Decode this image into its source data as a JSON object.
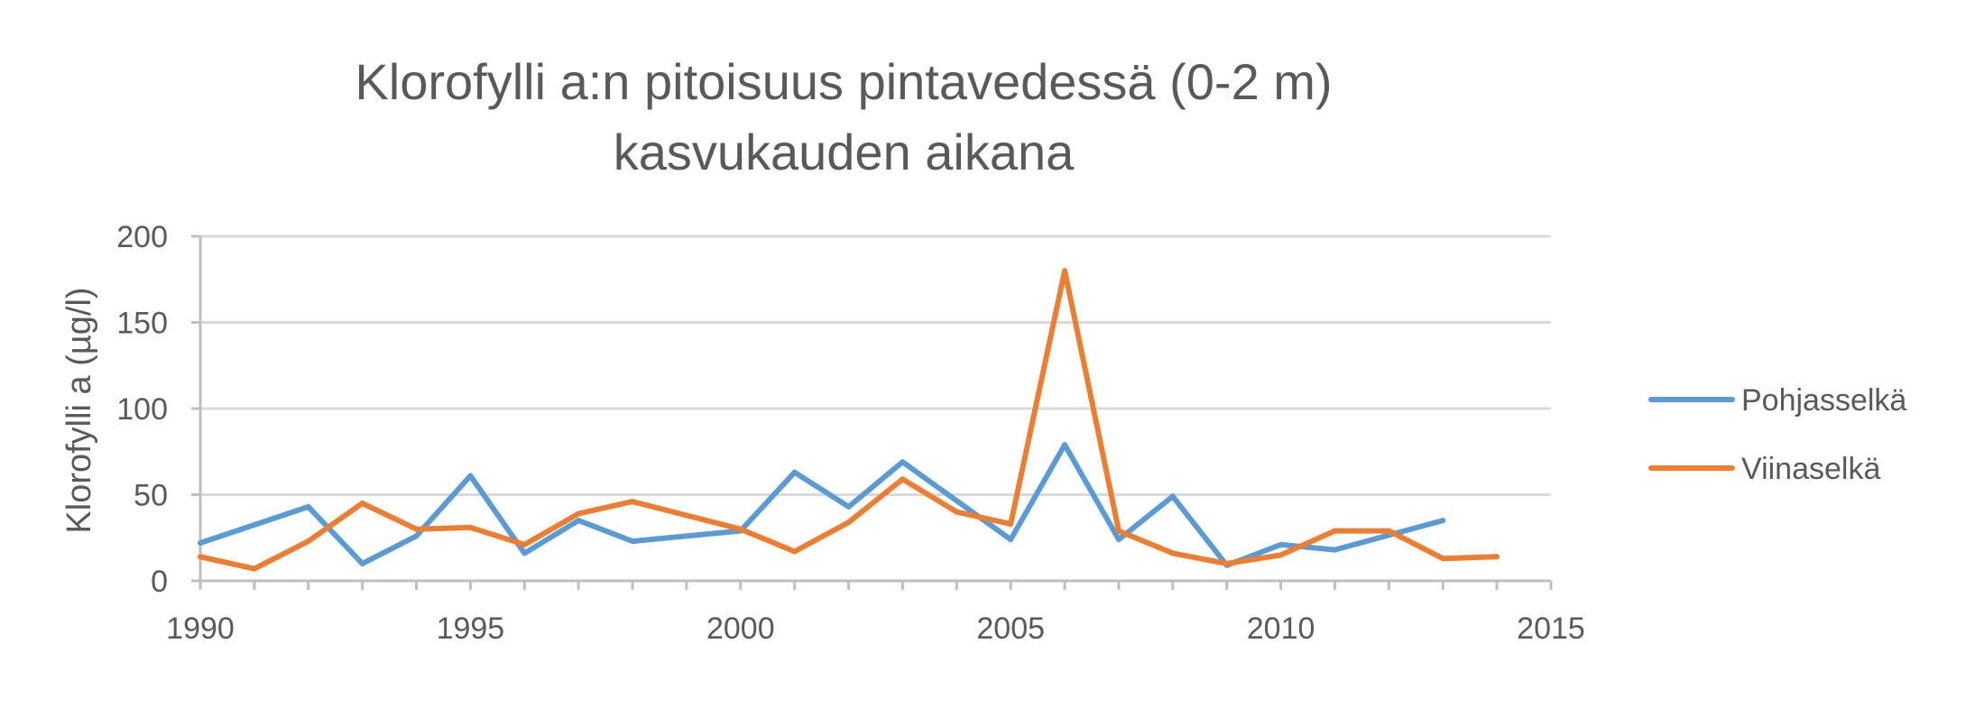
{
  "chart_data": {
    "type": "line",
    "title_lines": [
      "Klorofylli a:n pitoisuus pintavedessä (0-2 m)",
      "kasvukauden aikana"
    ],
    "ylabel": "Klorofylli a (µg/l)",
    "xlabel": "",
    "xlim": [
      1990,
      2015
    ],
    "ylim": [
      0,
      200
    ],
    "x_ticks": [
      1990,
      1995,
      2000,
      2005,
      2010,
      2015
    ],
    "y_ticks": [
      0,
      50,
      100,
      150,
      200
    ],
    "grid": "horizontal",
    "legend_position": "right",
    "series": [
      {
        "name": "Pohjasselkä",
        "color": "#5B9BD5",
        "points": [
          [
            1990,
            22
          ],
          [
            1992,
            43
          ],
          [
            1993,
            10
          ],
          [
            1994,
            26
          ],
          [
            1995,
            61
          ],
          [
            1996,
            16
          ],
          [
            1997,
            35
          ],
          [
            1998,
            23
          ],
          [
            2000,
            29
          ],
          [
            2001,
            63
          ],
          [
            2002,
            43
          ],
          [
            2003,
            69
          ],
          [
            2005,
            24
          ],
          [
            2006,
            79
          ],
          [
            2007,
            24
          ],
          [
            2008,
            49
          ],
          [
            2009,
            9
          ],
          [
            2010,
            21
          ],
          [
            2011,
            18
          ],
          [
            2013,
            35
          ]
        ]
      },
      {
        "name": "Viinaselkä",
        "color": "#ED7D31",
        "points": [
          [
            1990,
            14
          ],
          [
            1991,
            7
          ],
          [
            1992,
            23
          ],
          [
            1993,
            45
          ],
          [
            1994,
            30
          ],
          [
            1995,
            31
          ],
          [
            1996,
            21
          ],
          [
            1997,
            39
          ],
          [
            1998,
            46
          ],
          [
            2000,
            30
          ],
          [
            2001,
            17
          ],
          [
            2002,
            34
          ],
          [
            2003,
            59
          ],
          [
            2004,
            40
          ],
          [
            2005,
            33
          ],
          [
            2006,
            180
          ],
          [
            2007,
            29
          ],
          [
            2008,
            16
          ],
          [
            2009,
            10
          ],
          [
            2010,
            15
          ],
          [
            2011,
            29
          ],
          [
            2012,
            29
          ],
          [
            2013,
            13
          ],
          [
            2014,
            14
          ]
        ]
      }
    ]
  }
}
